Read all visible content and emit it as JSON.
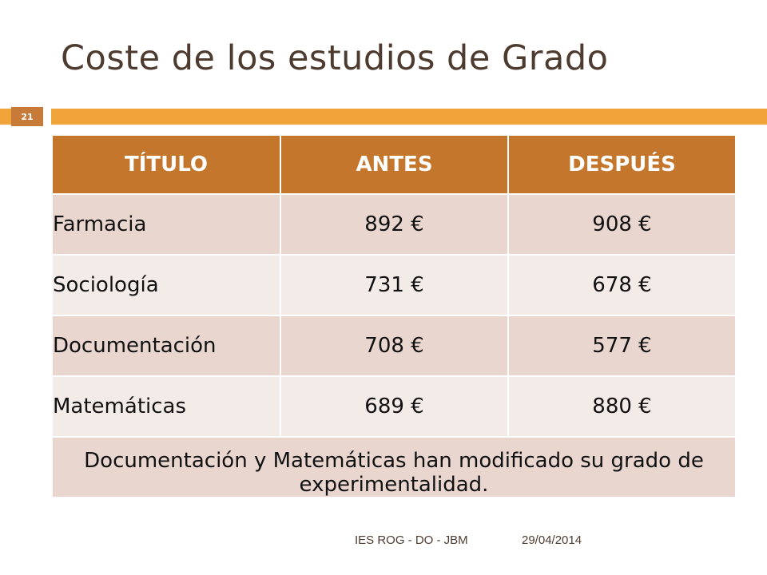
{
  "slide": {
    "title": "Coste de los estudios de Grado",
    "number": "21"
  },
  "table": {
    "headers": [
      "TÍTULO",
      "ANTES",
      "DESPUÉS"
    ],
    "rows": [
      {
        "titulo": "Farmacia",
        "antes": "892 €",
        "despues": "908 €"
      },
      {
        "titulo": "Sociología",
        "antes": "731 €",
        "despues": "678 €"
      },
      {
        "titulo": "Documentación",
        "antes": "708 €",
        "despues": "577 €"
      },
      {
        "titulo": "Matemáticas",
        "antes": "689 €",
        "despues": "880 €"
      }
    ],
    "note": "Documentación y Matemáticas han modificado su grado de experimentalidad."
  },
  "footer": {
    "text": "IES ROG - DO - JBM",
    "date": "29/04/2014"
  },
  "colors": {
    "accent_bar": "#f0a43a",
    "header_fill": "#c4762c",
    "row_dark": "#e8d6cf",
    "row_light": "#f3ebe8",
    "title_text": "#4e3b30"
  }
}
